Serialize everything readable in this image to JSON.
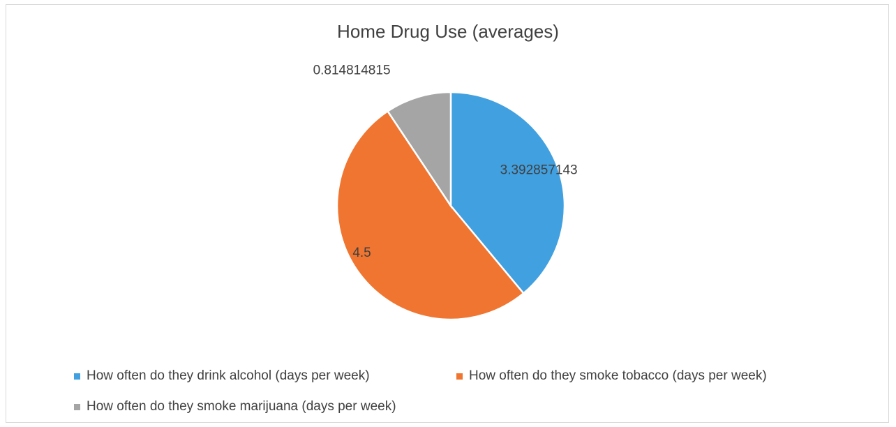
{
  "chart_data": {
    "type": "pie",
    "title": "Home Drug Use (averages)",
    "series": [
      {
        "name": "How often do they drink alcohol (days per week)",
        "value": 3.392857143,
        "label": "3.392857143",
        "color": "#41A0E0"
      },
      {
        "name": "How often do they smoke tobacco (days per week)",
        "value": 4.5,
        "label": "4.5",
        "color": "#F07530"
      },
      {
        "name": "How often do they smoke marijuana (days per week)",
        "value": 0.814814815,
        "label": "0.814814815",
        "color": "#A5A5A5"
      }
    ],
    "start_angle": "top (12 o'clock)",
    "direction": "clockwise",
    "legend_position": "bottom"
  }
}
